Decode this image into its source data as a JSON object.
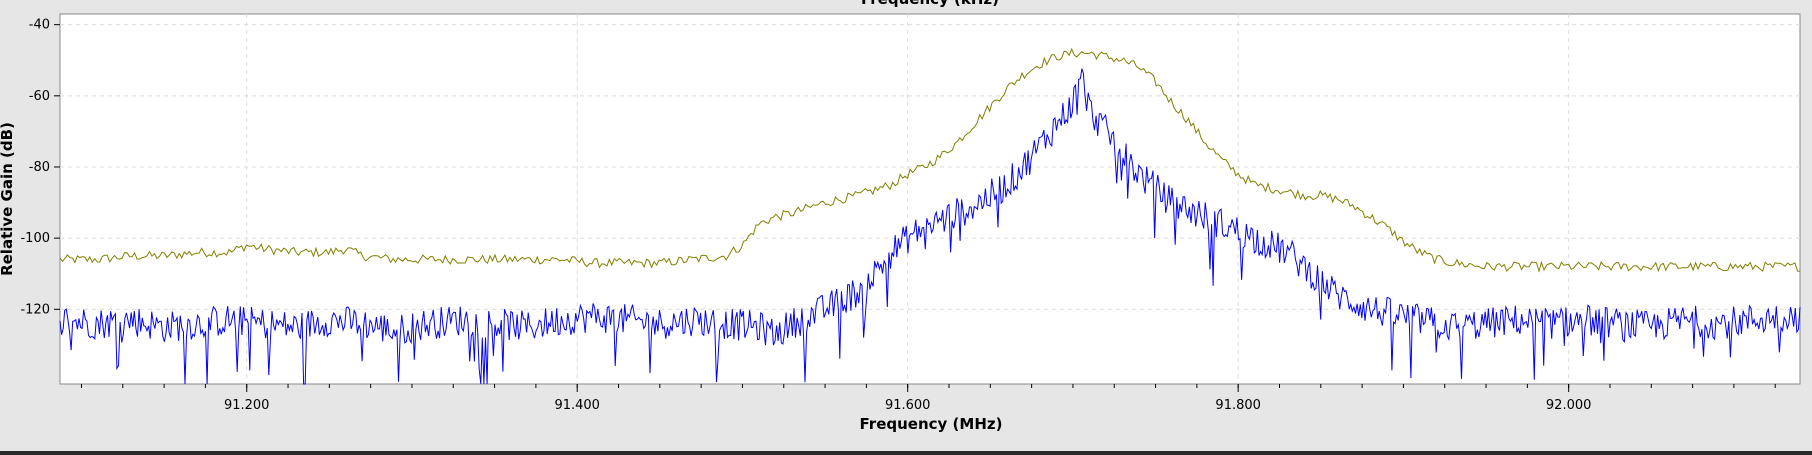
{
  "chart_data": {
    "type": "line",
    "top_title": "Frequency (kHz)",
    "xlabel": "Frequency (MHz)",
    "ylabel": "Relative Gain (dB)",
    "xlim": [
      91.087,
      92.14
    ],
    "ylim": [
      -141,
      -37
    ],
    "x_ticks": [
      {
        "value": 91.2,
        "label": "91.200"
      },
      {
        "value": 91.4,
        "label": "91.400"
      },
      {
        "value": 91.6,
        "label": "91.600"
      },
      {
        "value": 91.8,
        "label": "91.800"
      },
      {
        "value": 92.0,
        "label": "92.000"
      }
    ],
    "y_ticks": [
      {
        "value": -40,
        "label": "-40"
      },
      {
        "value": -60,
        "label": "-60"
      },
      {
        "value": -80,
        "label": "-80"
      },
      {
        "value": -100,
        "label": "-100"
      },
      {
        "value": -120,
        "label": "-120"
      }
    ],
    "grid": true,
    "series": [
      {
        "color": "#808000",
        "x": [
          91.09,
          91.11,
          91.13,
          91.15,
          91.17,
          91.19,
          91.2,
          91.21,
          91.23,
          91.25,
          91.26,
          91.27,
          91.29,
          91.31,
          91.33,
          91.35,
          91.37,
          91.39,
          91.41,
          91.43,
          91.45,
          91.47,
          91.49,
          91.5,
          91.51,
          91.52,
          91.53,
          91.55,
          91.57,
          91.59,
          91.6,
          91.61,
          91.62,
          91.63,
          91.64,
          91.65,
          91.66,
          91.67,
          91.68,
          91.69,
          91.7,
          91.71,
          91.72,
          91.73,
          91.74,
          91.75,
          91.76,
          91.77,
          91.78,
          91.79,
          91.8,
          91.81,
          91.82,
          91.83,
          91.84,
          91.85,
          91.86,
          91.87,
          91.88,
          91.89,
          91.9,
          91.91,
          91.92,
          91.93,
          91.95,
          91.97,
          91.99,
          92.01,
          92.03,
          92.05,
          92.07,
          92.09,
          92.11,
          92.13
        ],
        "y": [
          -106,
          -106,
          -105,
          -105,
          -104,
          -104,
          -102,
          -103,
          -104,
          -104,
          -103,
          -105,
          -106,
          -106,
          -106,
          -106,
          -106,
          -106,
          -107,
          -107,
          -107,
          -106,
          -105,
          -102,
          -96,
          -94,
          -93,
          -90,
          -88,
          -85,
          -82,
          -80,
          -77,
          -73,
          -68,
          -63,
          -58,
          -54,
          -51,
          -49,
          -48,
          -48,
          -49,
          -50,
          -52,
          -56,
          -62,
          -67,
          -73,
          -78,
          -82,
          -85,
          -86,
          -87,
          -88,
          -88,
          -89,
          -91,
          -94,
          -97,
          -101,
          -104,
          -106,
          -107,
          -108,
          -108,
          -108,
          -108,
          -108,
          -108,
          -108,
          -108,
          -108,
          -108
        ]
      },
      {
        "color": "#0000ff",
        "x": [
          91.09,
          91.11,
          91.13,
          91.15,
          91.17,
          91.19,
          91.21,
          91.23,
          91.25,
          91.27,
          91.29,
          91.31,
          91.33,
          91.35,
          91.37,
          91.39,
          91.41,
          91.43,
          91.45,
          91.47,
          91.49,
          91.51,
          91.52,
          91.53,
          91.55,
          91.57,
          91.58,
          91.59,
          91.6,
          91.61,
          91.62,
          91.63,
          91.64,
          91.65,
          91.66,
          91.67,
          91.68,
          91.69,
          91.7,
          91.705,
          91.71,
          91.72,
          91.73,
          91.74,
          91.75,
          91.76,
          91.77,
          91.78,
          91.79,
          91.8,
          91.81,
          91.82,
          91.83,
          91.84,
          91.85,
          91.86,
          91.87,
          91.88,
          91.89,
          91.9,
          91.91,
          91.92,
          91.93,
          91.95,
          91.97,
          91.99,
          92.01,
          92.03,
          92.05,
          92.07,
          92.09,
          92.11,
          92.13
        ],
        "y": [
          -123,
          -124,
          -123,
          -125,
          -124,
          -123,
          -124,
          -125,
          -123,
          -124,
          -126,
          -124,
          -123,
          -124,
          -125,
          -123,
          -122,
          -123,
          -124,
          -123,
          -124,
          -125,
          -127,
          -124,
          -120,
          -115,
          -110,
          -104,
          -100,
          -97,
          -95,
          -93,
          -91,
          -88,
          -85,
          -80,
          -74,
          -68,
          -62,
          -54,
          -64,
          -70,
          -76,
          -82,
          -86,
          -90,
          -92,
          -94,
          -96,
          -98,
          -100,
          -102,
          -104,
          -108,
          -112,
          -116,
          -118,
          -120,
          -121,
          -122,
          -123,
          -124,
          -125,
          -124,
          -123,
          -124,
          -123,
          -124,
          -125,
          -123,
          -124,
          -123,
          -122
        ]
      }
    ]
  }
}
